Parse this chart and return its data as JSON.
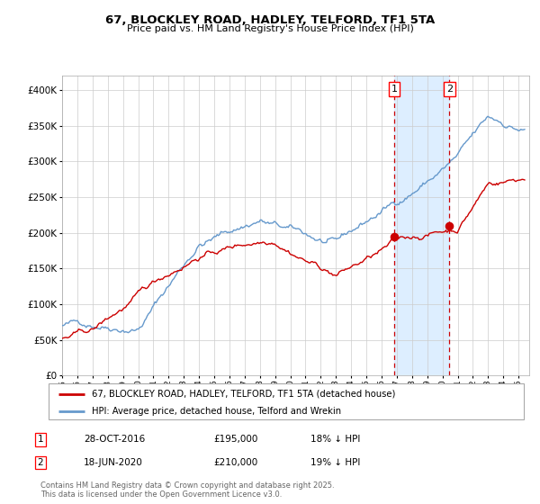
{
  "title": "67, BLOCKLEY ROAD, HADLEY, TELFORD, TF1 5TA",
  "subtitle": "Price paid vs. HM Land Registry's House Price Index (HPI)",
  "sale1_date": "28-OCT-2016",
  "sale1_price": 195000,
  "sale1_hpi_pct": "18% ↓ HPI",
  "sale2_date": "18-JUN-2020",
  "sale2_price": 210000,
  "sale2_hpi_pct": "19% ↓ HPI",
  "legend_red": "67, BLOCKLEY ROAD, HADLEY, TELFORD, TF1 5TA (detached house)",
  "legend_blue": "HPI: Average price, detached house, Telford and Wrekin",
  "footnote": "Contains HM Land Registry data © Crown copyright and database right 2025.\nThis data is licensed under the Open Government Licence v3.0.",
  "red_color": "#cc0000",
  "blue_color": "#6699cc",
  "background_color": "#ffffff",
  "grid_color": "#cccccc",
  "shade_color": "#ddeeff",
  "sale1_year": 2016.83,
  "sale2_year": 2020.46,
  "ylim": [
    0,
    420000
  ],
  "xlim_start": 1995.0,
  "xlim_end": 2025.7
}
